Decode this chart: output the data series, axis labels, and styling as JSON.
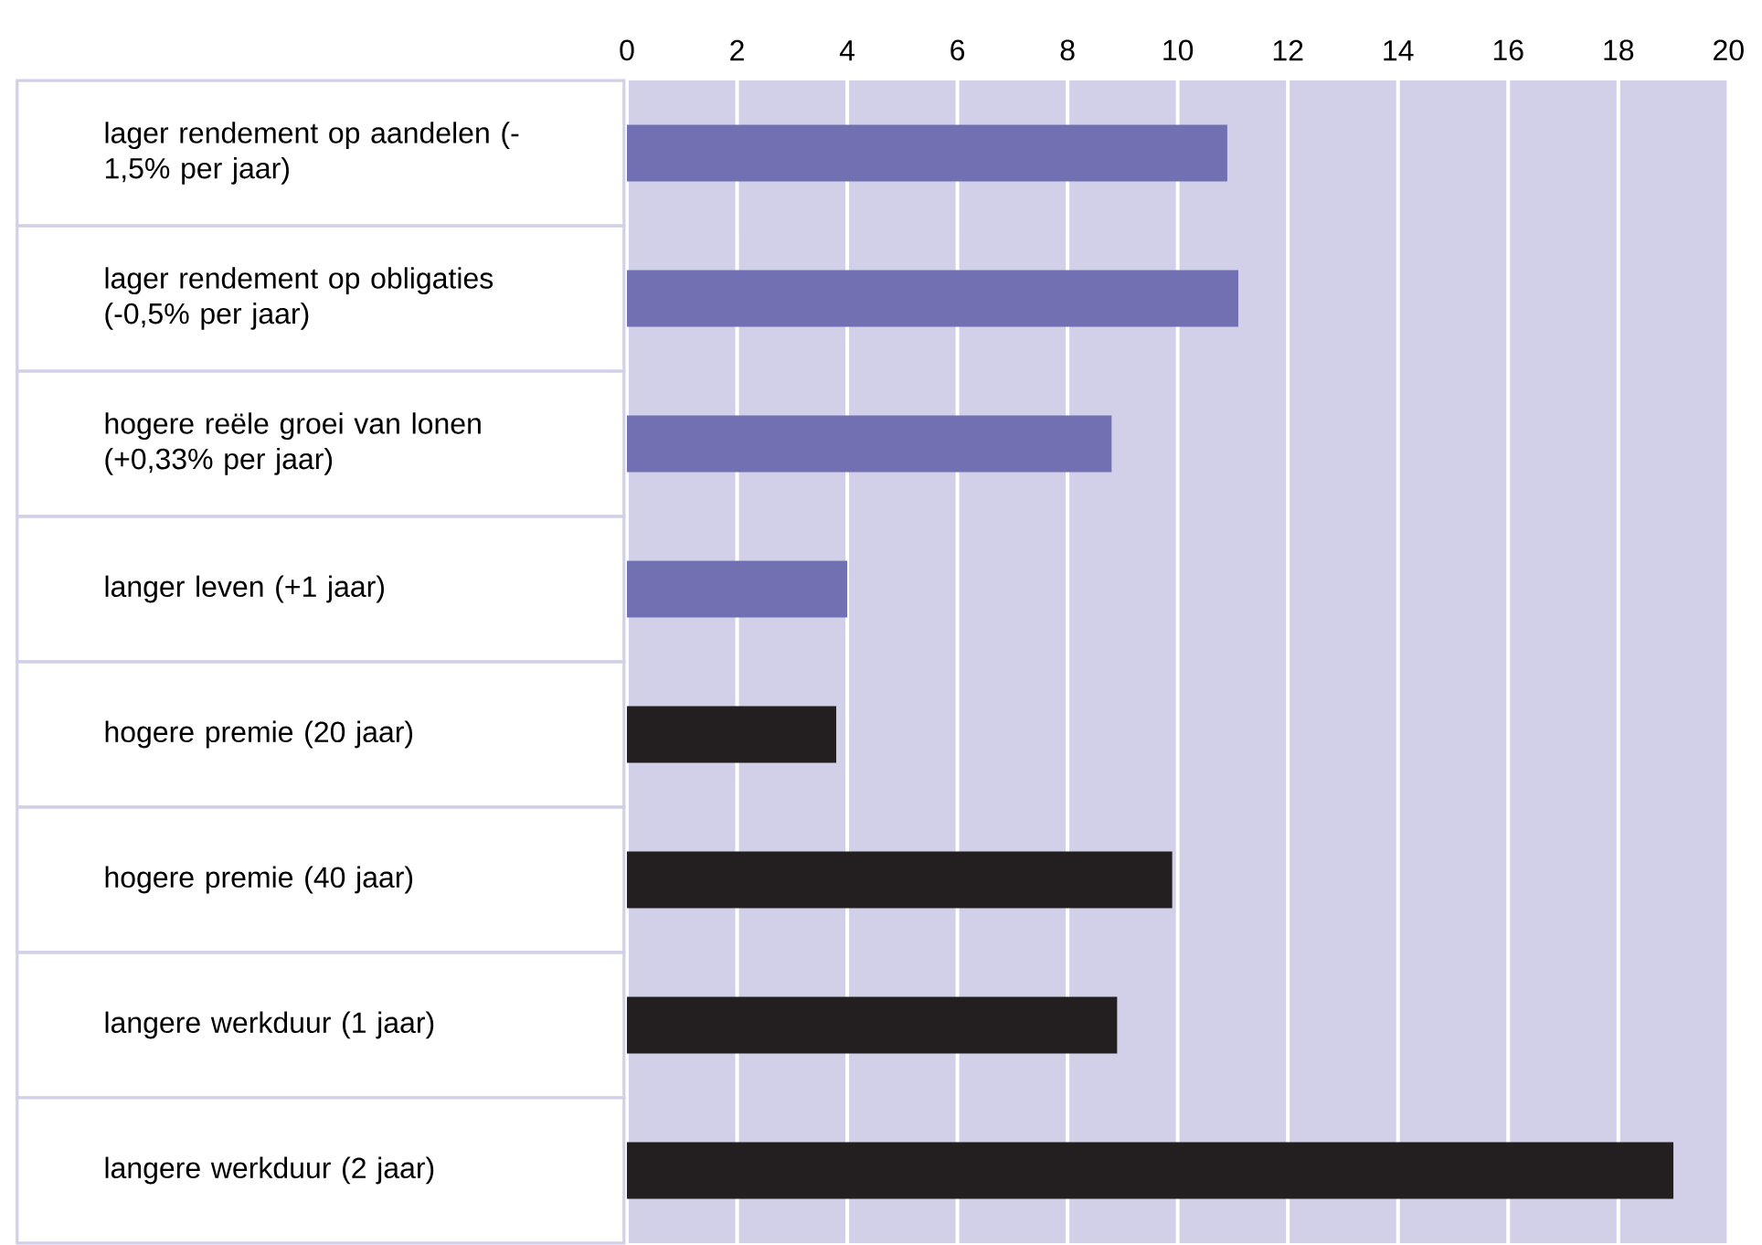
{
  "chart_data": {
    "type": "bar",
    "orientation": "horizontal",
    "categories": [
      "lager rendement op aandelen (-1,5% per jaar)",
      "lager rendement op obligaties (-0,5% per jaar)",
      "hogere reële groei van lonen (+0,33% per jaar)",
      "langer leven (+1 jaar)",
      "hogere premie (20 jaar)",
      "hogere premie (40 jaar)",
      "langere werkduur (1 jaar)",
      "langere werkduur (2 jaar)"
    ],
    "values": [
      10.9,
      11.1,
      8.8,
      4.0,
      3.8,
      9.9,
      8.9,
      19.0
    ],
    "colors": [
      "#7070b2",
      "#7070b2",
      "#7070b2",
      "#7070b2",
      "#231f20",
      "#231f20",
      "#231f20",
      "#231f20"
    ],
    "xlim": [
      0,
      20
    ],
    "xticks": [
      0,
      2,
      4,
      6,
      8,
      10,
      12,
      14,
      16,
      18,
      20
    ],
    "grid": "x"
  }
}
